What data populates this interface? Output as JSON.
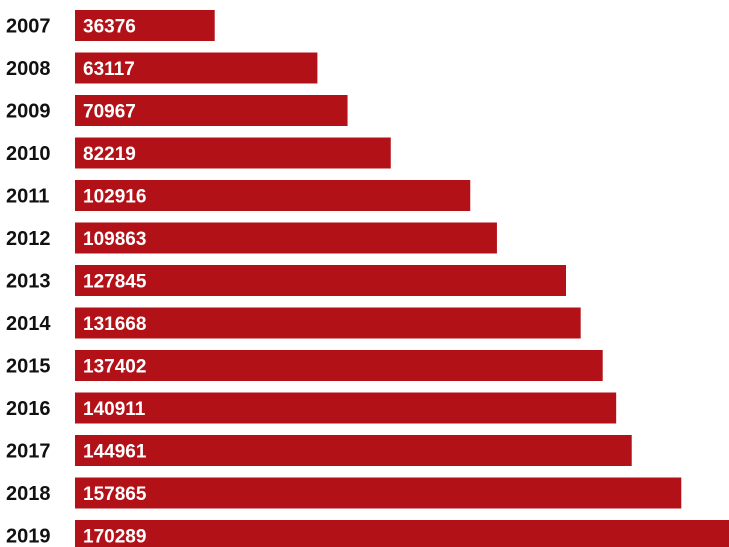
{
  "colors": {
    "bar": "#b31118",
    "year_text": "#111111",
    "value_text": "#ffffff",
    "background": "#ffffff"
  },
  "chart_data": {
    "type": "bar",
    "orientation": "horizontal",
    "categories": [
      "2007",
      "2008",
      "2009",
      "2010",
      "2011",
      "2012",
      "2013",
      "2014",
      "2015",
      "2016",
      "2017",
      "2018",
      "2019"
    ],
    "values": [
      36376,
      63117,
      70967,
      82219,
      102916,
      109863,
      127845,
      131668,
      137402,
      140911,
      144961,
      157865,
      170289
    ],
    "value_labels": [
      "36376",
      "63117",
      "70967",
      "82219",
      "102916",
      "109863",
      "127845",
      "131668",
      "137402",
      "140911",
      "144961",
      "157865",
      "170289"
    ],
    "title": "",
    "xlabel": "",
    "ylabel": "",
    "xlim": [
      0,
      170289
    ],
    "grid": false,
    "legend": "none"
  }
}
